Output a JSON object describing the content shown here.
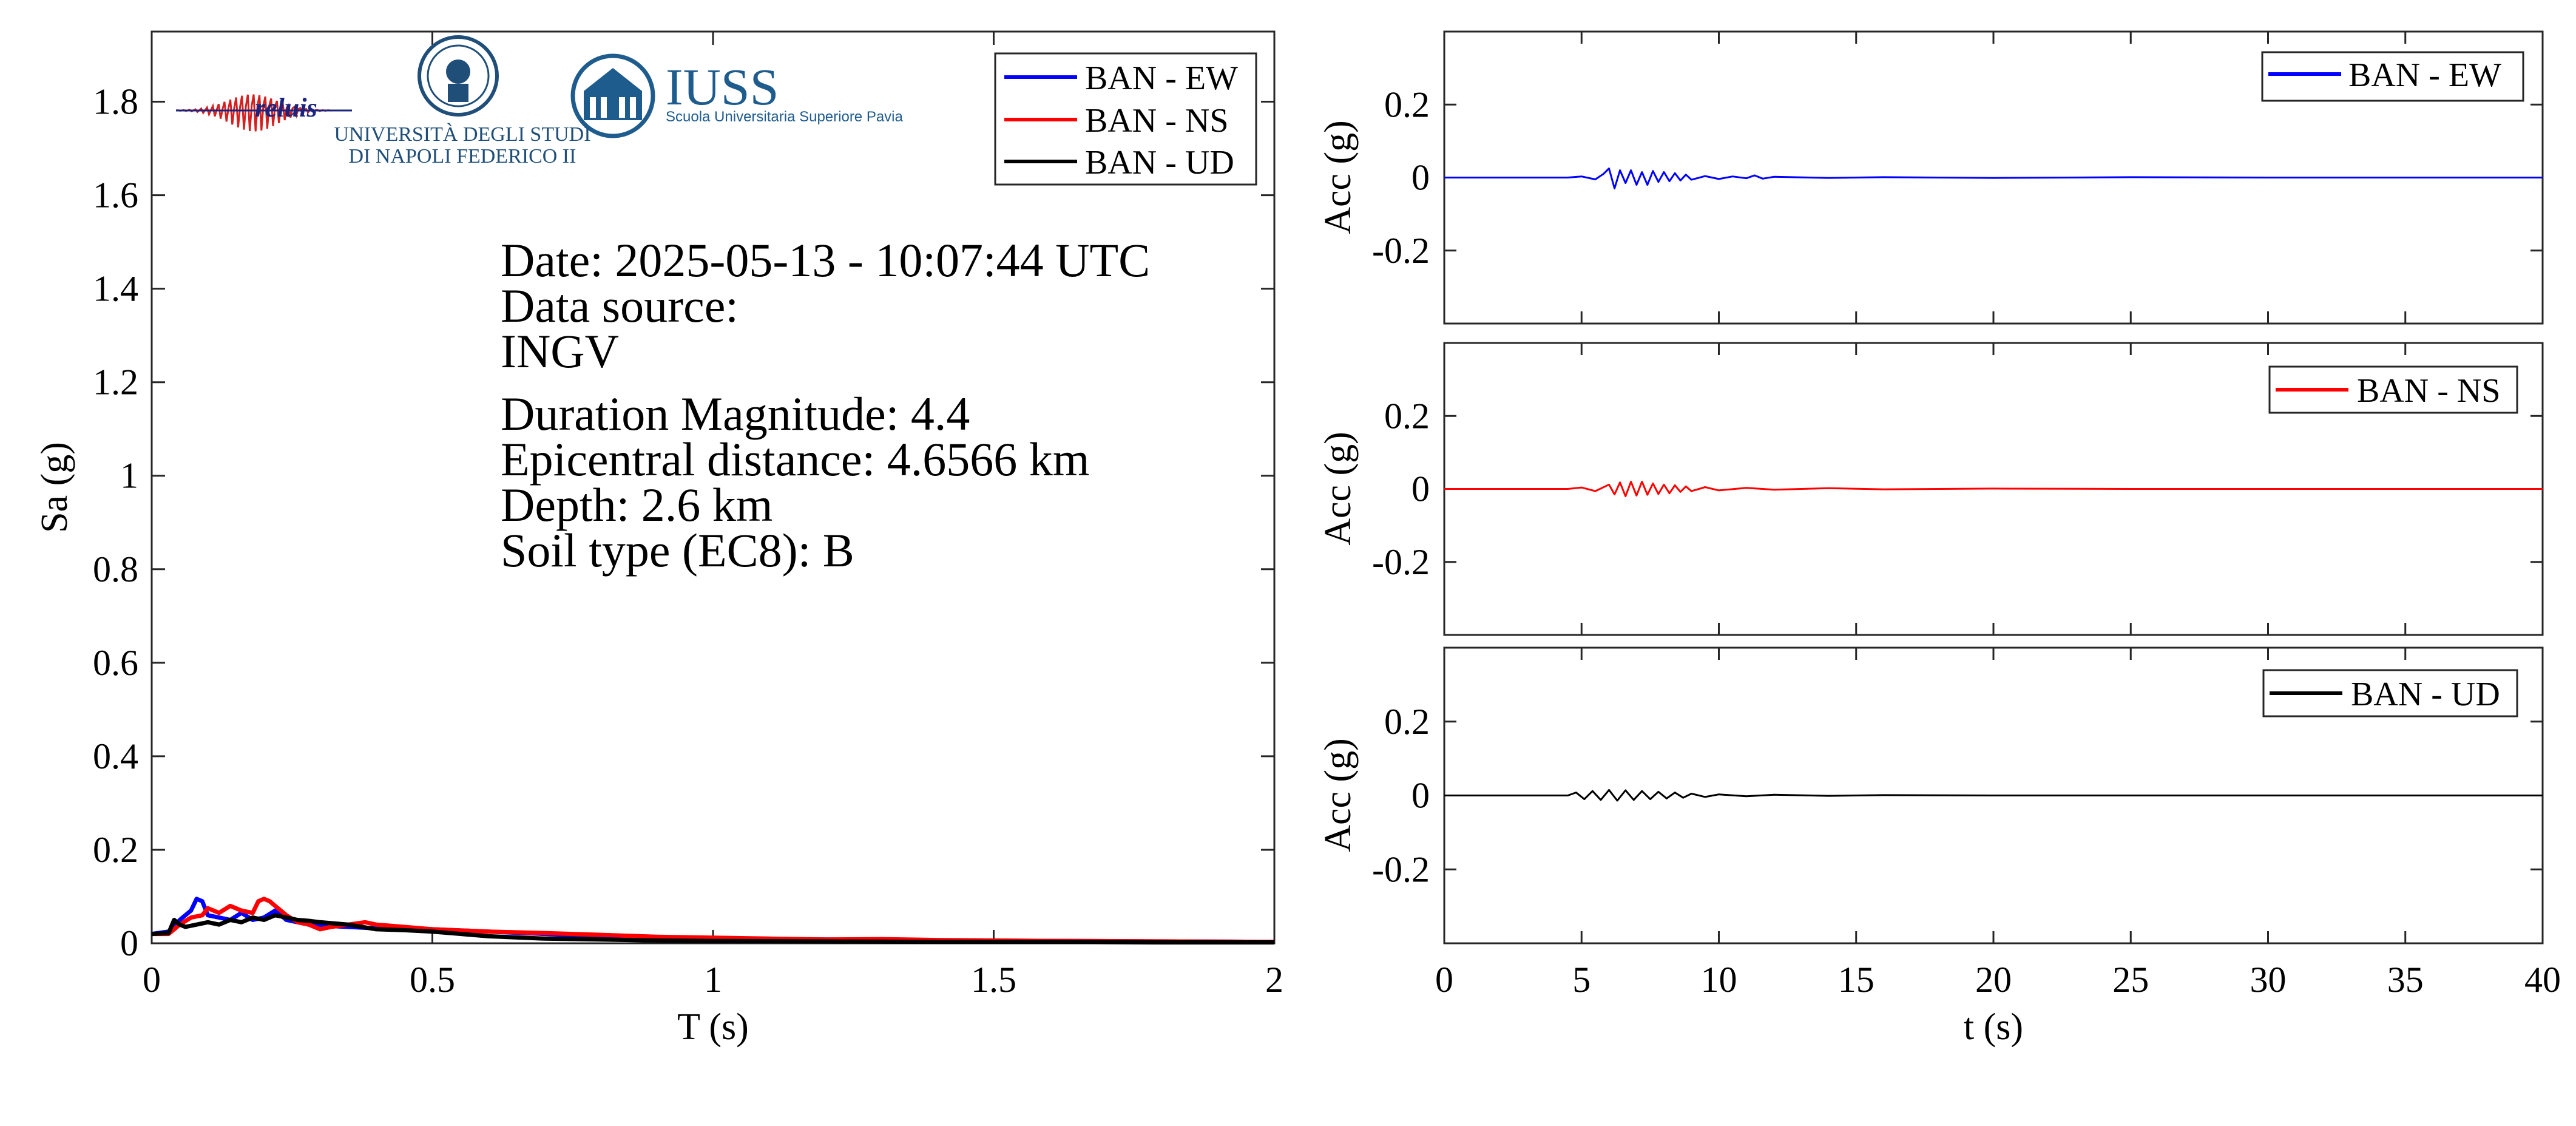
{
  "colors": {
    "ew": "#0000ff",
    "ns": "#ff0000",
    "ud": "#000000",
    "iuss": "#1f5c8e",
    "reluis": "#1a237e"
  },
  "logos": {
    "reluis": "reluis",
    "unina_line1": "UNIVERSITÀ DEGLI STUDI",
    "unina_line2": "DI NAPOLI FEDERICO II",
    "iuss_title": "IUSS",
    "iuss_sub": "Scuola Universitaria Superiore Pavia"
  },
  "info": {
    "date": "Date: 2025-05-13 - 10:07:44 UTC",
    "source_label": "Data source:",
    "source_value": "INGV",
    "magnitude": "Duration Magnitude: 4.4",
    "distance": "Epicentral distance: 4.6566 km",
    "depth": "Depth: 2.6 km",
    "soil": "Soil type (EC8): B"
  },
  "chart_data": [
    {
      "type": "line",
      "xlabel": "T (s)",
      "ylabel": "Sa (g)",
      "xlim": [
        0,
        2
      ],
      "ylim": [
        0,
        1.95
      ],
      "xticks": [
        "0",
        "0.5",
        "1",
        "1.5",
        "2"
      ],
      "yticks": [
        "0",
        "0.2",
        "0.4",
        "0.6",
        "0.8",
        "1",
        "1.2",
        "1.4",
        "1.6",
        "1.8"
      ],
      "grid": false,
      "legend": "top-right",
      "series": [
        {
          "name": "BAN - EW",
          "color": "ew",
          "x": [
            0,
            0.03,
            0.05,
            0.07,
            0.08,
            0.09,
            0.1,
            0.12,
            0.14,
            0.16,
            0.18,
            0.2,
            0.22,
            0.24,
            0.26,
            0.28,
            0.3,
            0.35,
            0.4,
            0.5,
            0.6,
            0.7,
            0.8,
            0.9,
            1.0,
            1.2,
            1.4,
            1.6,
            1.8,
            2.0
          ],
          "y": [
            0.02,
            0.025,
            0.05,
            0.07,
            0.095,
            0.09,
            0.06,
            0.055,
            0.05,
            0.065,
            0.05,
            0.055,
            0.07,
            0.05,
            0.045,
            0.04,
            0.038,
            0.035,
            0.032,
            0.03,
            0.025,
            0.02,
            0.015,
            0.012,
            0.01,
            0.008,
            0.006,
            0.005,
            0.004,
            0.003
          ]
        },
        {
          "name": "BAN - NS",
          "color": "ns",
          "x": [
            0,
            0.03,
            0.05,
            0.07,
            0.09,
            0.1,
            0.12,
            0.14,
            0.16,
            0.18,
            0.19,
            0.2,
            0.21,
            0.22,
            0.24,
            0.26,
            0.28,
            0.3,
            0.32,
            0.35,
            0.38,
            0.4,
            0.45,
            0.5,
            0.6,
            0.7,
            0.8,
            0.9,
            1.0,
            1.1,
            1.2,
            1.3,
            1.4,
            1.5,
            1.6,
            1.8,
            2.0
          ],
          "y": [
            0.02,
            0.02,
            0.04,
            0.055,
            0.06,
            0.075,
            0.065,
            0.08,
            0.07,
            0.065,
            0.09,
            0.095,
            0.09,
            0.08,
            0.06,
            0.045,
            0.04,
            0.03,
            0.035,
            0.04,
            0.045,
            0.04,
            0.035,
            0.03,
            0.025,
            0.022,
            0.018,
            0.014,
            0.012,
            0.01,
            0.008,
            0.009,
            0.007,
            0.006,
            0.005,
            0.004,
            0.003
          ]
        },
        {
          "name": "BAN - UD",
          "color": "ud",
          "x": [
            0,
            0.03,
            0.04,
            0.05,
            0.06,
            0.08,
            0.1,
            0.12,
            0.14,
            0.16,
            0.18,
            0.2,
            0.22,
            0.24,
            0.26,
            0.28,
            0.3,
            0.35,
            0.4,
            0.45,
            0.5,
            0.6,
            0.7,
            0.8,
            0.9,
            1.0,
            1.2,
            1.4,
            1.6,
            1.8,
            2.0
          ],
          "y": [
            0.02,
            0.022,
            0.05,
            0.04,
            0.035,
            0.04,
            0.045,
            0.04,
            0.05,
            0.045,
            0.055,
            0.05,
            0.06,
            0.055,
            0.05,
            0.048,
            0.045,
            0.04,
            0.03,
            0.028,
            0.025,
            0.015,
            0.01,
            0.008,
            0.006,
            0.005,
            0.004,
            0.003,
            0.003,
            0.002,
            0.002
          ]
        }
      ]
    },
    {
      "type": "line",
      "xlabel": "",
      "ylabel": "Acc (g)",
      "xlim": [
        0,
        40
      ],
      "ylim": [
        -0.4,
        0.4
      ],
      "yticks": [
        "0.2",
        "0",
        "-0.2"
      ],
      "legend": "top-right",
      "series": [
        {
          "name": "BAN - EW",
          "color": "ew",
          "x": [
            0,
            4.5,
            5,
            5.5,
            5.8,
            6.0,
            6.2,
            6.4,
            6.6,
            6.8,
            7.0,
            7.2,
            7.4,
            7.6,
            7.8,
            8.0,
            8.2,
            8.4,
            8.6,
            8.8,
            9.0,
            9.5,
            10,
            10.5,
            11,
            11.3,
            11.6,
            12,
            14,
            16,
            20,
            25,
            30,
            35,
            40
          ],
          "y": [
            0,
            0,
            0.003,
            -0.005,
            0.01,
            0.025,
            -0.03,
            0.02,
            -0.015,
            0.02,
            -0.02,
            0.015,
            -0.02,
            0.018,
            -0.012,
            0.015,
            -0.01,
            0.012,
            -0.008,
            0.008,
            -0.006,
            0.004,
            -0.004,
            0.003,
            -0.002,
            0.006,
            -0.003,
            0.002,
            -0.001,
            0.001,
            -0.001,
            0.001,
            0,
            0,
            0
          ]
        },
        {
          "name": "BAN - NS",
          "color": "ns",
          "x": [
            0,
            4.5,
            5,
            5.5,
            6.0,
            6.2,
            6.4,
            6.6,
            6.8,
            7.0,
            7.2,
            7.4,
            7.6,
            7.8,
            8.0,
            8.2,
            8.4,
            8.6,
            8.8,
            9.0,
            9.5,
            10,
            11,
            12,
            14,
            16,
            20,
            25,
            30,
            35,
            40
          ],
          "y": [
            0,
            0,
            0.004,
            -0.006,
            0.012,
            -0.015,
            0.018,
            -0.02,
            0.02,
            -0.018,
            0.02,
            -0.016,
            0.015,
            -0.014,
            0.012,
            -0.012,
            0.01,
            -0.008,
            0.007,
            -0.006,
            0.005,
            -0.004,
            0.003,
            -0.002,
            0.002,
            -0.001,
            0.001,
            0,
            0,
            0,
            0
          ]
        },
        {
          "name": "BAN - UD",
          "color": "ud",
          "x": [
            0,
            4.5,
            4.8,
            5.1,
            5.4,
            5.7,
            6.0,
            6.3,
            6.6,
            6.9,
            7.2,
            7.5,
            7.8,
            8.1,
            8.4,
            8.7,
            9.0,
            9.5,
            10,
            11,
            12,
            14,
            16,
            20,
            25,
            30,
            35,
            40
          ],
          "y": [
            0,
            0,
            0.008,
            -0.01,
            0.012,
            -0.012,
            0.015,
            -0.014,
            0.014,
            -0.012,
            0.012,
            -0.01,
            0.01,
            -0.008,
            0.008,
            -0.006,
            0.005,
            -0.004,
            0.003,
            -0.002,
            0.002,
            -0.001,
            0.001,
            0,
            0,
            0,
            0,
            0
          ]
        }
      ],
      "shared_x": {
        "xlabel": "t (s)",
        "xticks": [
          "0",
          "5",
          "10",
          "15",
          "20",
          "25",
          "30",
          "35",
          "40"
        ]
      }
    }
  ]
}
